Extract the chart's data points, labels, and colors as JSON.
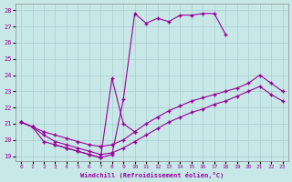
{
  "xlabel": "Windchill (Refroidissement éolien,°C)",
  "bg_color": "#c8e8e8",
  "grid_color": "#a8cece",
  "line_color": "#990099",
  "xlim": [
    -0.5,
    23.5
  ],
  "ylim": [
    18.7,
    28.4
  ],
  "xticks": [
    0,
    1,
    2,
    3,
    4,
    5,
    6,
    7,
    8,
    9,
    10,
    11,
    12,
    13,
    14,
    15,
    16,
    17,
    18,
    19,
    20,
    21,
    22,
    23
  ],
  "yticks": [
    19,
    20,
    21,
    22,
    23,
    24,
    25,
    26,
    27,
    28
  ],
  "curve_upper_x": [
    0,
    1,
    2,
    3,
    4,
    5,
    6,
    7,
    8,
    9,
    10,
    11,
    12,
    13,
    14,
    15,
    16,
    17,
    18
  ],
  "curve_upper_y": [
    21.1,
    20.8,
    19.9,
    19.7,
    19.5,
    19.3,
    19.1,
    18.9,
    19.1,
    22.5,
    27.8,
    27.2,
    27.5,
    27.3,
    27.7,
    27.7,
    27.8,
    27.8,
    26.5
  ],
  "curve_spike_x": [
    3,
    4,
    5,
    6,
    7,
    8,
    9,
    10
  ],
  "curve_spike_y": [
    19.7,
    19.5,
    19.3,
    19.1,
    18.9,
    23.8,
    21.0,
    20.5
  ],
  "curve_mid_x": [
    0,
    1,
    2,
    3,
    4,
    5,
    6,
    7,
    8,
    9,
    10,
    11,
    12,
    13,
    14,
    15,
    16,
    17,
    18,
    19,
    20,
    21,
    22,
    23
  ],
  "curve_mid_y": [
    21.1,
    20.8,
    20.5,
    20.3,
    20.1,
    19.9,
    19.7,
    19.6,
    19.7,
    20.0,
    20.5,
    21.0,
    21.4,
    21.8,
    22.1,
    22.4,
    22.6,
    22.8,
    23.0,
    23.2,
    23.5,
    24.0,
    23.5,
    23.0
  ],
  "curve_low_x": [
    0,
    1,
    2,
    3,
    4,
    5,
    6,
    7,
    8,
    9,
    10,
    11,
    12,
    13,
    14,
    15,
    16,
    17,
    18,
    19,
    20,
    21,
    22,
    23
  ],
  "curve_low_y": [
    21.1,
    20.8,
    20.3,
    19.9,
    19.7,
    19.5,
    19.3,
    19.1,
    19.2,
    19.5,
    19.9,
    20.3,
    20.7,
    21.1,
    21.4,
    21.7,
    21.9,
    22.2,
    22.4,
    22.7,
    23.0,
    23.3,
    22.8,
    22.4
  ]
}
